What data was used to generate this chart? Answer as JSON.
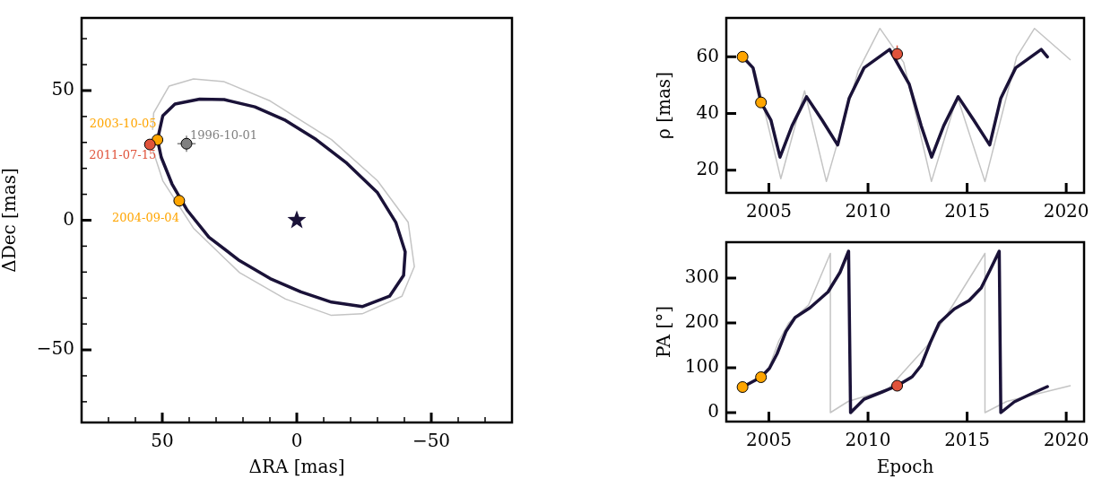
{
  "chart_data": [
    {
      "type": "line",
      "xlabel": "ΔRA [mas]",
      "ylabel": "ΔDec [mas]",
      "xlim": [
        80,
        -80
      ],
      "ylim": [
        -78,
        78
      ],
      "xticks": [
        {
          "value": 70,
          "label": null
        },
        {
          "value": 60,
          "label": null
        },
        50,
        {
          "value": 40,
          "label": null
        },
        {
          "value": 30,
          "label": null
        },
        {
          "value": 20,
          "label": null
        },
        {
          "value": 10,
          "label": null
        },
        0,
        {
          "value": -10,
          "label": null
        },
        {
          "value": -20,
          "label": null
        },
        {
          "value": -30,
          "label": null
        },
        {
          "value": -40,
          "label": null
        },
        {
          "value": -50,
          "label": "−50"
        },
        {
          "value": -60,
          "label": null
        },
        {
          "value": -70,
          "label": null
        }
      ],
      "yticks": [
        {
          "value": -70,
          "label": null
        },
        {
          "value": -60,
          "label": null
        },
        {
          "value": -50,
          "label": "−50"
        },
        {
          "value": -40,
          "label": null
        },
        {
          "value": -30,
          "label": null
        },
        {
          "value": -20,
          "label": null
        },
        {
          "value": -10,
          "label": null
        },
        0,
        {
          "value": 10,
          "label": null
        },
        {
          "value": 20,
          "label": null
        },
        {
          "value": 30,
          "label": null
        },
        {
          "value": 40,
          "label": null
        },
        50,
        {
          "value": 60,
          "label": null
        },
        {
          "value": 70,
          "label": null
        }
      ],
      "legend": false,
      "series": [
        {
          "marker": "none",
          "color": "#c4c4c4",
          "x": [
            53.6,
            53.2,
            47.5,
            38.4,
            27,
            9.9,
            -12.9,
            -30,
            -41.4,
            -43.7,
            -39.1,
            -24.3,
            -12.9,
            4.2,
            21.3,
            38.4,
            49.8,
            53.5
          ],
          "values": [
            35,
            41.4,
            51.7,
            54.5,
            53.4,
            46,
            31.1,
            15.2,
            -0.8,
            -17.9,
            -29.3,
            -36.1,
            -36.7,
            -30.4,
            -20.2,
            -3.1,
            15.2,
            27
          ]
        },
        {
          "marker": "none",
          "color": "#1a1238",
          "x": [
            51.8,
            49.8,
            45.3,
            36.1,
            27,
            15.6,
            4.2,
            -7.2,
            -18.6,
            -30,
            -36.8,
            -40.3,
            -39.7,
            -34.5,
            -24.3,
            -12.9,
            -1.5,
            9.9,
            21.3,
            32.7,
            40.7,
            46.4,
            50.4,
            51.4
          ],
          "values": [
            31,
            40.3,
            44.8,
            46.7,
            46.5,
            43.7,
            38.5,
            31.1,
            22,
            10.6,
            -0.8,
            -12.2,
            -21.3,
            -29.3,
            -33.3,
            -31.6,
            -27.6,
            -22.5,
            -15.6,
            -6.5,
            3.8,
            14,
            24.3,
            29.2
          ]
        },
        {
          "type": "scatter",
          "marker": "star",
          "color": "#1a1238",
          "x": [
            0
          ],
          "values": [
            0
          ]
        },
        {
          "type": "scatter",
          "marker": "circle",
          "name": "1996-10-01",
          "color": "#808080",
          "x": [
            41
          ],
          "values": [
            29.5
          ],
          "errors": [
            3.1
          ],
          "xerrors": [
            3.4
          ]
        },
        {
          "type": "scatter",
          "marker": "circle",
          "name": "2003-10-05",
          "color": "#ffa500",
          "x": [
            51.8
          ],
          "values": [
            31
          ]
        },
        {
          "type": "scatter",
          "marker": "circle",
          "name": "2004-09-04",
          "color": "#ffa500",
          "x": [
            43.7
          ],
          "values": [
            7.5
          ]
        },
        {
          "type": "scatter",
          "marker": "circle",
          "name": "2011-07-15",
          "color": "#e0533b",
          "x": [
            54.6
          ],
          "values": [
            29.2
          ]
        }
      ]
    },
    {
      "type": "line",
      "ylabel": "ρ [mas]",
      "xlim": [
        2002.85,
        2020.9
      ],
      "ylim": [
        12,
        73.7
      ],
      "xticks": [
        2005,
        2010,
        2015,
        2020
      ],
      "yticks": [
        20,
        40,
        60
      ],
      "legend": false,
      "series": [
        {
          "marker": "none",
          "color": "#c4c4c4",
          "x": [
            2004.3,
            2005.6,
            2006.8,
            2007.9,
            2009.5,
            2010.6,
            2011.8,
            2013.2,
            2014.5,
            2015.9,
            2017.5,
            2018.4,
            2020.2
          ],
          "values": [
            55,
            17,
            48,
            16,
            55,
            70,
            58,
            16,
            46,
            16,
            60,
            70,
            59
          ]
        },
        {
          "marker": "none",
          "color": "#1a1238",
          "x": [
            2003.67,
            2004.2,
            2004.6,
            2005.1,
            2005.56,
            2006.17,
            2006.9,
            2007.68,
            2008.47,
            2009.05,
            2009.8,
            2011.09,
            2012.08,
            2012.68,
            2013.21,
            2013.82,
            2014.55,
            2015.33,
            2016.14,
            2016.7,
            2017.45,
            2018.74,
            2019.05
          ],
          "values": [
            60,
            56.1,
            43.9,
            37.7,
            24.6,
            35.7,
            45.9,
            37.7,
            28.9,
            45.4,
            56.1,
            62.6,
            50.3,
            35.7,
            24.6,
            35.7,
            45.9,
            37.7,
            28.9,
            45.4,
            56.1,
            62.6,
            60
          ]
        },
        {
          "type": "scatter",
          "marker": "circle",
          "color": "#ffa500",
          "x": [
            2003.67,
            2004.6
          ],
          "values": [
            60,
            43.9
          ]
        },
        {
          "type": "scatter",
          "marker": "circle",
          "color": "#e0533b",
          "x": [
            2011.47
          ],
          "values": [
            61
          ],
          "errors": [
            3
          ]
        }
      ]
    },
    {
      "type": "line",
      "xlabel": "Epoch",
      "ylabel": "PA [°]",
      "xlim": [
        2002.85,
        2020.9
      ],
      "ylim": [
        -20,
        380
      ],
      "xticks": [
        2005,
        2010,
        2015,
        2020
      ],
      "yticks": [
        0,
        100,
        200,
        300
      ],
      "legend": false,
      "series": [
        {
          "marker": "none",
          "color": "#c4c4c4",
          "x": [
            2005.0,
            2005.5,
            2006,
            2007,
            2008.1,
            2008.1,
            2009,
            2011.0,
            2013,
            2014,
            2015.9,
            2015.9,
            2017,
            2020.2
          ],
          "values": [
            100,
            160,
            200,
            240,
            355,
            0,
            25,
            52,
            150,
            220,
            355,
            0,
            25,
            60
          ]
        },
        {
          "marker": "none",
          "color": "#1a1238",
          "x": [
            2003.67,
            2004.6,
            2005.03,
            2005.41,
            2005.86,
            2006.32,
            2007.08,
            2007.98,
            2008.59,
            2009.02,
            2009.12,
            2009.8,
            2010.71,
            2011.47,
            2012.23,
            2012.68,
            2013.14,
            2013.59,
            2014.35,
            2015.1,
            2015.71,
            2016.17,
            2016.62,
            2016.7,
            2017.38,
            2018.29,
            2019.05
          ],
          "values": [
            57,
            79,
            99,
            131,
            181,
            212,
            234,
            269,
            313,
            360,
            0,
            30,
            46,
            60,
            80,
            105,
            156,
            200,
            231,
            250,
            278,
            319,
            360,
            0,
            24,
            43,
            58
          ]
        },
        {
          "type": "scatter",
          "marker": "circle",
          "color": "#ffa500",
          "x": [
            2003.67,
            2004.6
          ],
          "values": [
            57,
            79
          ]
        },
        {
          "type": "scatter",
          "marker": "circle",
          "color": "#e0533b",
          "x": [
            2011.47
          ],
          "values": [
            60
          ]
        }
      ]
    }
  ]
}
